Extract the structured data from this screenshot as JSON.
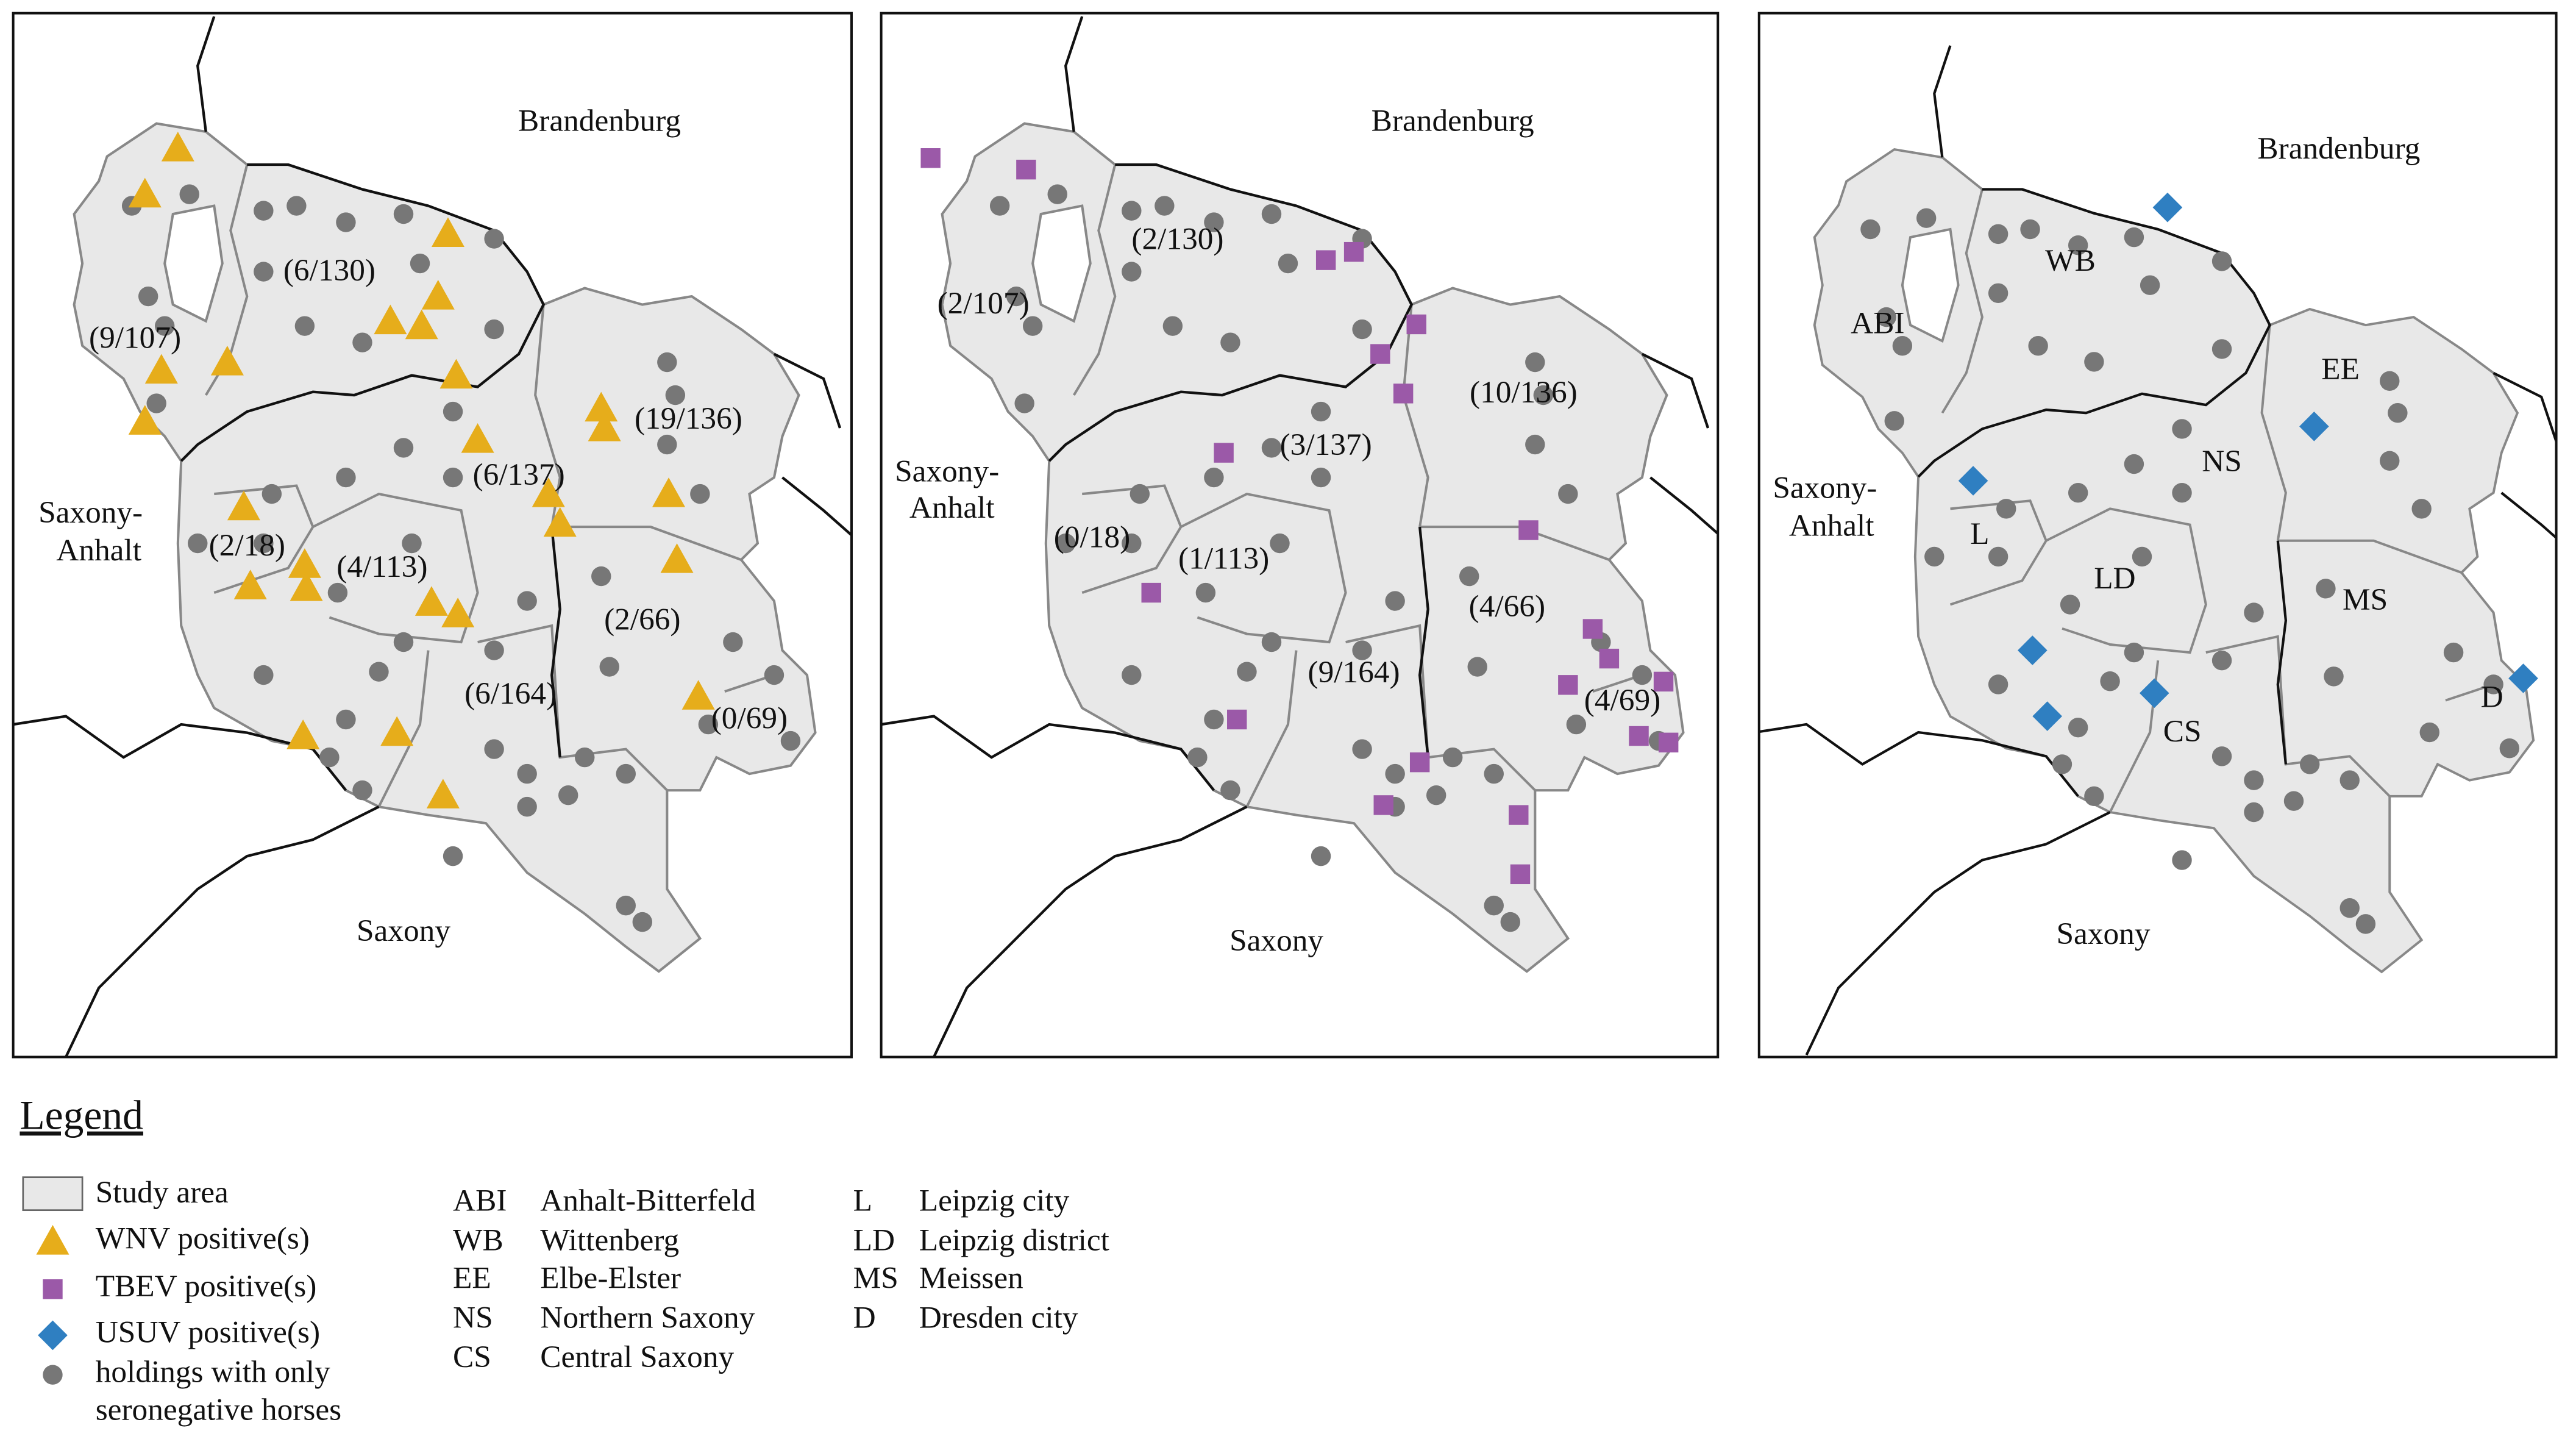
{
  "panels": [
    {
      "state_labels": {
        "brandenburg": "Brandenburg",
        "saxony_anhalt": [
          "Saxony-",
          "Anhalt"
        ],
        "saxony": "Saxony"
      },
      "region_labels": [
        "(6/130)",
        "(9/107)",
        "(19/136)",
        "(6/137)",
        "(2/18)",
        "(4/113)",
        "(2/66)",
        "(6/164)",
        "(0/69)"
      ]
    },
    {
      "state_labels": {
        "brandenburg": "Brandenburg",
        "saxony_anhalt": [
          "Saxony-",
          "Anhalt"
        ],
        "saxony": "Saxony"
      },
      "region_labels": [
        "(2/130)",
        "(2/107)",
        "(10/136)",
        "(3/137)",
        "(0/18)",
        "(1/113)",
        "(4/66)",
        "(9/164)",
        "(4/69)"
      ]
    },
    {
      "state_labels": {
        "brandenburg": "Brandenburg",
        "saxony_anhalt": [
          "Saxony-",
          "Anhalt"
        ],
        "saxony": "Saxony"
      },
      "region_labels": [
        "WB",
        "ABI",
        "EE",
        "NS",
        "L",
        "LD",
        "MS",
        "CS",
        "D"
      ]
    }
  ],
  "legend": {
    "title": "Legend",
    "items": [
      "Study area",
      "WNV positive(s)",
      "TBEV positive(s)",
      "USUV positive(s)",
      [
        "holdings with only",
        "seronegative horses"
      ]
    ],
    "abbreviations": [
      {
        "code": "ABI",
        "name": "Anhalt-Bitterfeld"
      },
      {
        "code": "WB",
        "name": "Wittenberg"
      },
      {
        "code": "EE",
        "name": "Elbe-Elster"
      },
      {
        "code": "NS",
        "name": "Northern Saxony"
      },
      {
        "code": "CS",
        "name": "Central Saxony"
      },
      {
        "code": "L",
        "name": "Leipzig city"
      },
      {
        "code": "LD",
        "name": "Leipzig district"
      },
      {
        "code": "MS",
        "name": "Meissen"
      },
      {
        "code": "D",
        "name": "Dresden city"
      }
    ]
  }
}
